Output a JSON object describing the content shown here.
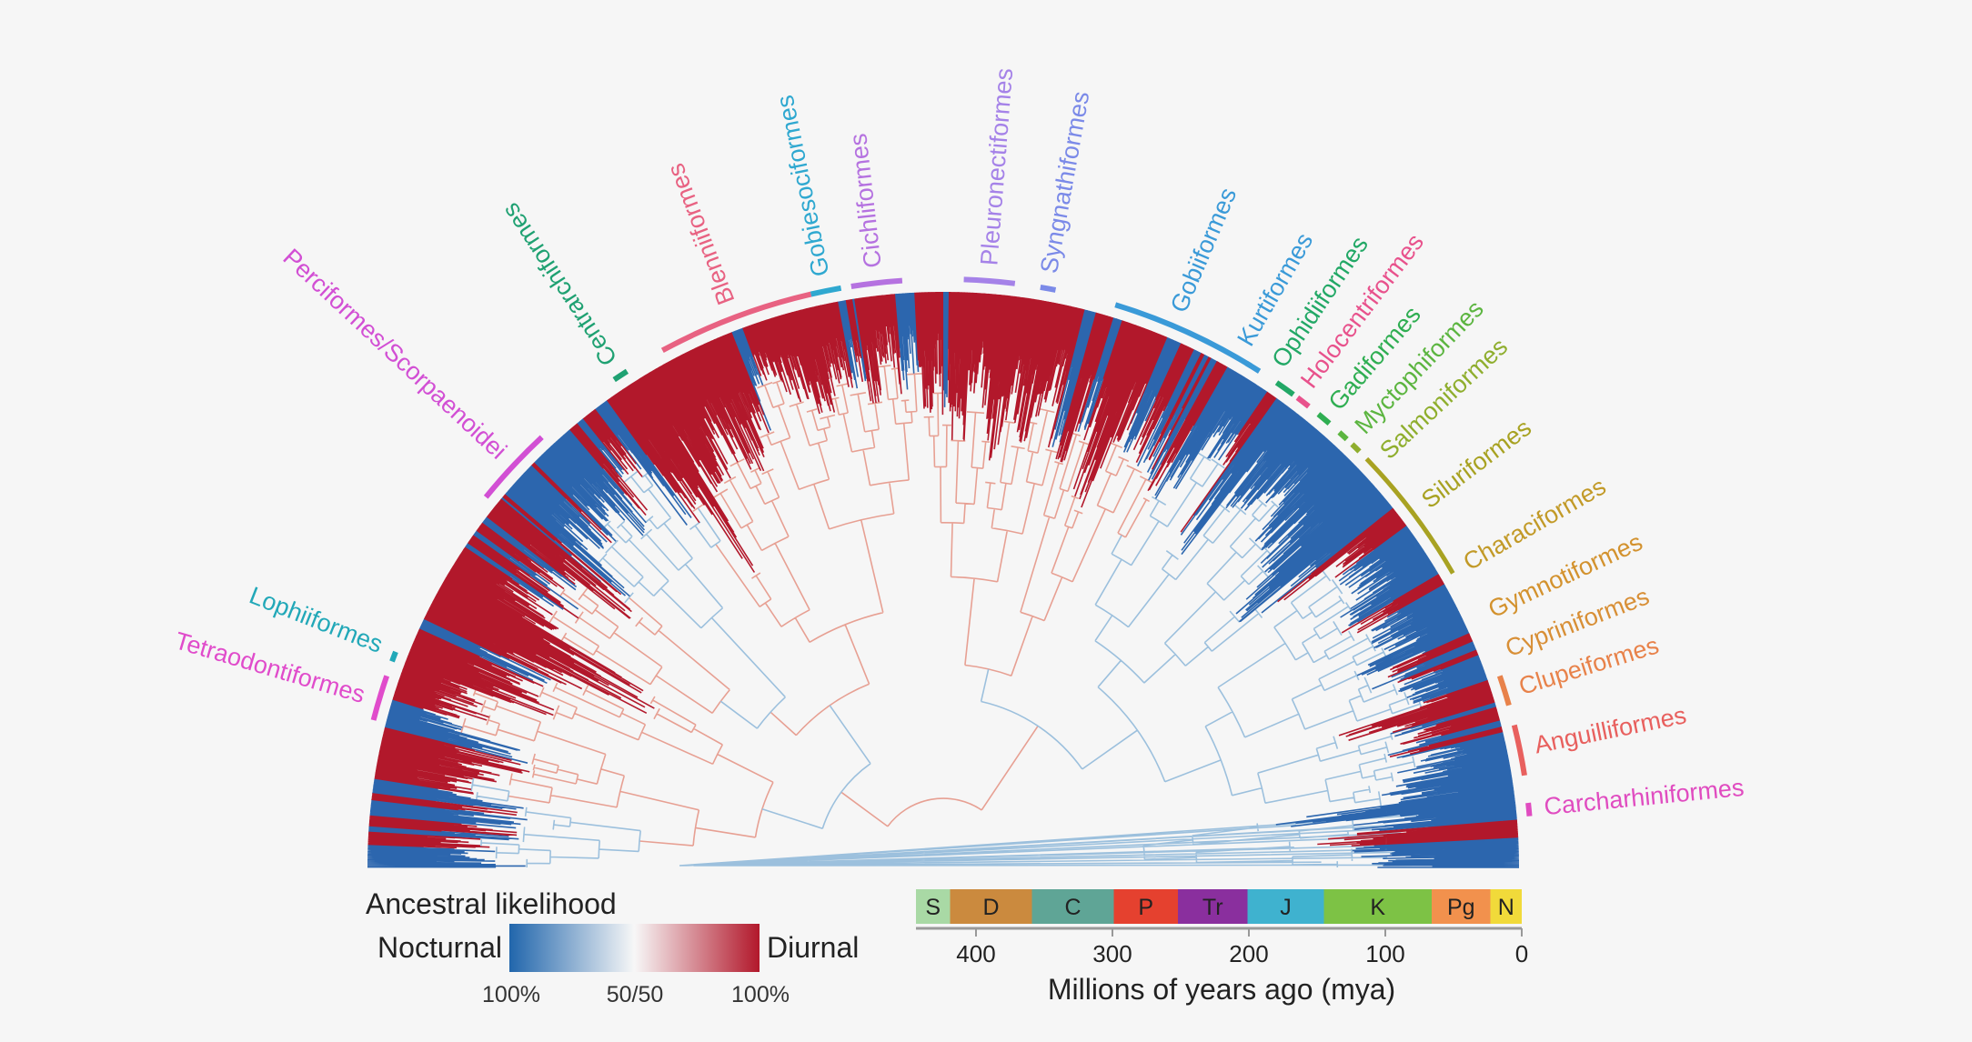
{
  "legend": {
    "title": "Ancestral likelihood",
    "left_label": "Nocturnal",
    "right_label": "Diurnal",
    "ticks": [
      "100%",
      "50/50",
      "100%"
    ],
    "colors": {
      "nocturnal": "#2166ac",
      "mid": "#f7f7f7",
      "diurnal": "#b2182b"
    }
  },
  "timescale": {
    "axis_label": "Millions of years ago (mya)",
    "ticks": [
      400,
      300,
      200,
      100,
      0
    ],
    "tick_labels": [
      "400",
      "300",
      "200",
      "100",
      "0"
    ],
    "periods": [
      {
        "name": "S",
        "start": 444,
        "end": 419,
        "color": "#a9d9a5"
      },
      {
        "name": "D",
        "start": 419,
        "end": 359,
        "color": "#cb8a3e"
      },
      {
        "name": "C",
        "start": 359,
        "end": 299,
        "color": "#5fa596"
      },
      {
        "name": "P",
        "start": 299,
        "end": 252,
        "color": "#e5412f"
      },
      {
        "name": "Tr",
        "start": 252,
        "end": 201,
        "color": "#8a2f9e"
      },
      {
        "name": "J",
        "start": 201,
        "end": 145,
        "color": "#3fb2cf"
      },
      {
        "name": "K",
        "start": 145,
        "end": 66,
        "color": "#7dc245"
      },
      {
        "name": "Pg",
        "start": 66,
        "end": 23,
        "color": "#f2914d"
      },
      {
        "name": "N",
        "start": 23,
        "end": 0,
        "color": "#f1da3a"
      }
    ]
  },
  "clades": [
    {
      "name": "Carcharhiniformes",
      "color": "#e04cc0"
    },
    {
      "name": "Anguilliformes",
      "color": "#e8605e"
    },
    {
      "name": "Clupeiformes",
      "color": "#e8824a"
    },
    {
      "name": "Cypriniformes",
      "color": "#d88f36"
    },
    {
      "name": "Gymnotiformes",
      "color": "#d3922e"
    },
    {
      "name": "Characiformes",
      "color": "#c29a28"
    },
    {
      "name": "Siluriformes",
      "color": "#a8a222"
    },
    {
      "name": "Salmoniformes",
      "color": "#8fae2e"
    },
    {
      "name": "Myctophiformes",
      "color": "#5cb540"
    },
    {
      "name": "Gadiformes",
      "color": "#2fae52"
    },
    {
      "name": "Holocentriformes",
      "color": "#e8528c"
    },
    {
      "name": "Ophidiiformes",
      "color": "#22a866"
    },
    {
      "name": "Kurtiformes",
      "color": "#3a9ad8"
    },
    {
      "name": "Gobiiformes",
      "color": "#3a9ad8"
    },
    {
      "name": "Syngnathiformes",
      "color": "#7b8ae8"
    },
    {
      "name": "Pleuronectiformes",
      "color": "#a582e8"
    },
    {
      "name": "Cichliformes",
      "color": "#b572e0"
    },
    {
      "name": "Gobiesociformes",
      "color": "#2fa8d0"
    },
    {
      "name": "Blenniiformes",
      "color": "#e86282"
    },
    {
      "name": "Centrarchiformes",
      "color": "#1fa172"
    },
    {
      "name": "Perciformes/Scorpaenoidei",
      "color": "#d24fd4"
    },
    {
      "name": "Lophiiformes",
      "color": "#22a8b8"
    },
    {
      "name": "Tetraodontiformes",
      "color": "#e04ccb"
    }
  ]
}
